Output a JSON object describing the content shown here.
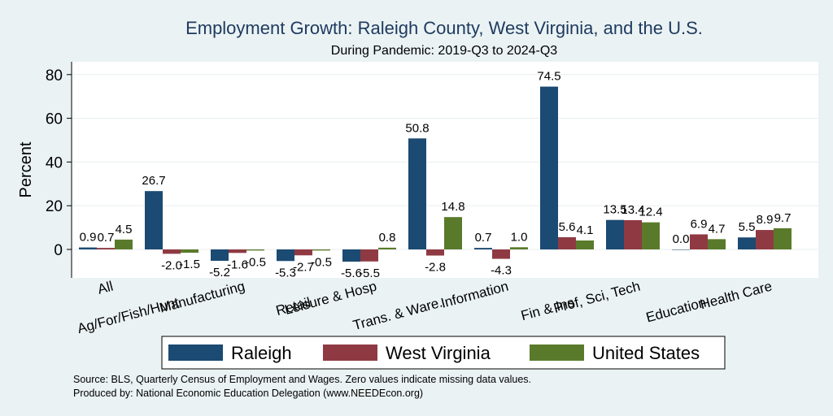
{
  "colors": {
    "background": "#eaf2f3",
    "plot_background": "#ffffff",
    "grid": "#e8eef0",
    "raleigh": "#1b4a72",
    "west_virginia": "#8f3a43",
    "united_states": "#5a7a2b",
    "title": "#1e3a5f"
  },
  "chart_data": {
    "type": "bar",
    "title": "Employment Growth: Raleigh County, West Virginia, and the U.S.",
    "subtitle": "During Pandemic: 2019-Q3 to 2024-Q3",
    "xlabel": "",
    "ylabel": "Percent",
    "ylim": [
      -10,
      86
    ],
    "yticks": [
      0,
      20,
      40,
      60,
      80
    ],
    "grid": true,
    "legend_position": "bottom",
    "categories": [
      "All",
      "Ag/For/Fish/Hunt",
      "Manufacturing",
      "Retail",
      "Leisure & Hosp",
      "Trans. & Ware.",
      "Information",
      "Fin & Ins",
      "Prof, Sci, Tech",
      "Education",
      "Health Care"
    ],
    "series": [
      {
        "name": "Raleigh",
        "color_key": "raleigh",
        "values": [
          0.9,
          26.7,
          -5.2,
          -5.3,
          -5.6,
          50.8,
          0.7,
          74.5,
          13.5,
          0.0,
          5.5
        ],
        "labels": [
          "0.9",
          "26.7",
          "-5.2",
          "-5.3",
          "-5.6",
          "50.8",
          "0.7",
          "74.5",
          "13.5",
          "0.0",
          "5.5"
        ]
      },
      {
        "name": "West Virginia",
        "color_key": "west_virginia",
        "values": [
          0.7,
          -2.0,
          -1.6,
          -2.7,
          -5.5,
          -2.8,
          -4.3,
          5.6,
          13.4,
          6.9,
          8.9
        ],
        "labels": [
          "0.7",
          "-2.0",
          "-1.6",
          "-2.7",
          "-5.5",
          "-2.8",
          "-4.3",
          "5.6",
          "13.4",
          "6.9",
          "8.9"
        ]
      },
      {
        "name": "United States",
        "color_key": "united_states",
        "values": [
          4.5,
          -1.5,
          -0.5,
          -0.5,
          0.8,
          14.8,
          1.0,
          4.1,
          12.4,
          4.7,
          9.7
        ],
        "labels": [
          "4.5",
          "-1.5",
          "-0.5",
          "-0.5",
          "0.8",
          "14.8",
          "1.0",
          "4.1",
          "12.4",
          "4.7",
          "9.7"
        ]
      }
    ]
  },
  "footer": {
    "source": "Source: BLS, Quarterly Census of Employment and Wages. Zero values indicate missing data values.",
    "produced_by": "Produced by: National Economic Education Delegation (www.NEEDEcon.org)"
  }
}
